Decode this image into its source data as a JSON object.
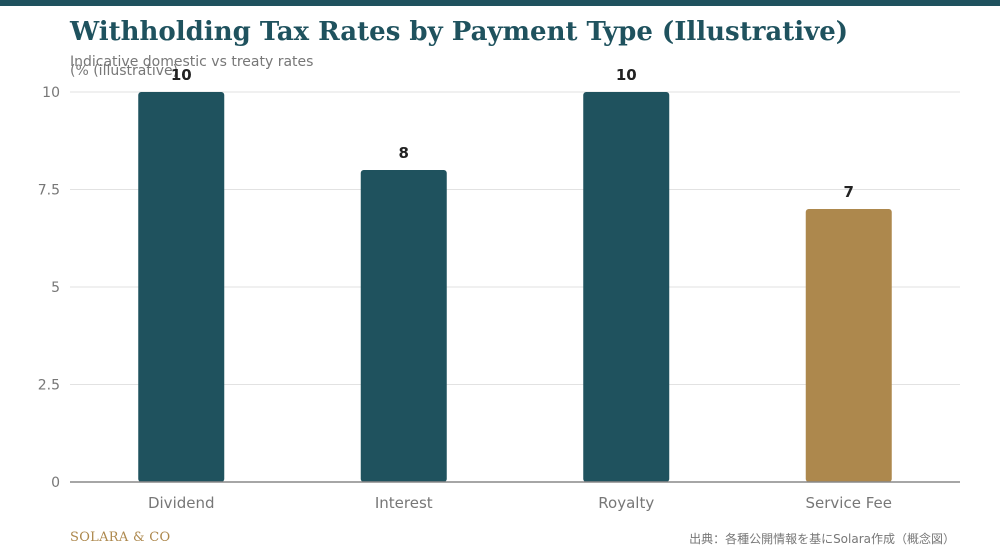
{
  "colors": {
    "accent": "#1f525e",
    "highlight": "#ad884d",
    "title": "#1f525e",
    "muted_text": "#777777",
    "gridline": "#e2e2e2",
    "axis": "#888888",
    "value_label": "#222222",
    "brand": "#ad884d"
  },
  "header": {
    "title": "Withholding Tax Rates by Payment Type (Illustrative)",
    "subtitle": "Indicative domestic vs treaty rates",
    "unit_note": "(% (illustrative)"
  },
  "chart_data": {
    "type": "bar",
    "title": "Withholding Tax Rates by Payment Type (Illustrative)",
    "subtitle": "Indicative domestic vs treaty rates",
    "ylabel": "(% (illustrative)",
    "xlabel": "",
    "categories": [
      "Dividend",
      "Interest",
      "Royalty",
      "Service Fee"
    ],
    "values": [
      10,
      8,
      10,
      7
    ],
    "value_labels": [
      "10",
      "8",
      "10",
      "7"
    ],
    "highlight_index": 3,
    "ylim": [
      0,
      10
    ],
    "yticks": [
      0,
      2.5,
      5,
      7.5,
      10
    ],
    "ytick_labels": [
      "0",
      "2.5",
      "5",
      "7.5",
      "10"
    ],
    "grid": true,
    "legend": "none"
  },
  "footer": {
    "brand": "SOLARA & CO",
    "source": "出典：各種公開情報を基にSolara作成（概念図）"
  }
}
